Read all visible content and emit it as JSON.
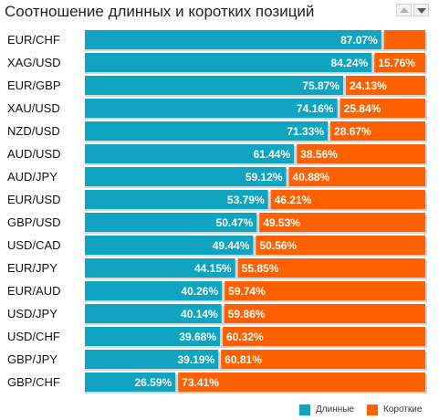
{
  "header": {
    "title": "Соотношение длинных и коротких позиций",
    "sort_up_icon": "triangle-up-icon",
    "sort_down_icon": "triangle-down-icon"
  },
  "legend": {
    "long_label": "Длинные",
    "short_label": "Короткие"
  },
  "colors": {
    "long": "#0fa4bf",
    "short": "#ff6000",
    "track": "#d6d6d6"
  },
  "chart_data": {
    "type": "bar",
    "orientation": "horizontal",
    "stacked": true,
    "title": "Соотношение длинных и коротких позиций",
    "categories": [
      "EUR/CHF",
      "XAG/USD",
      "EUR/GBP",
      "XAU/USD",
      "NZD/USD",
      "AUD/USD",
      "AUD/JPY",
      "EUR/USD",
      "GBP/USD",
      "USD/CAD",
      "EUR/JPY",
      "EUR/AUD",
      "USD/JPY",
      "USD/CHF",
      "GBP/JPY",
      "GBP/CHF"
    ],
    "series": [
      {
        "name": "Длинные",
        "values": [
          87.07,
          84.24,
          75.87,
          74.16,
          71.33,
          61.44,
          59.12,
          53.79,
          50.47,
          49.44,
          44.15,
          40.26,
          40.14,
          39.68,
          39.19,
          26.59
        ]
      },
      {
        "name": "Короткие",
        "values": [
          12.93,
          15.76,
          24.13,
          25.84,
          28.67,
          38.56,
          40.88,
          46.21,
          49.53,
          50.56,
          55.85,
          59.74,
          59.86,
          60.32,
          60.81,
          73.41
        ]
      }
    ],
    "labels": [
      [
        "87.07%",
        ""
      ],
      [
        "84.24%",
        "15.76%"
      ],
      [
        "75.87%",
        "24.13%"
      ],
      [
        "74.16%",
        "25.84%"
      ],
      [
        "71.33%",
        "28.67%"
      ],
      [
        "61.44%",
        "38.56%"
      ],
      [
        "59.12%",
        "40.88%"
      ],
      [
        "53.79%",
        "46.21%"
      ],
      [
        "50.47%",
        "49.53%"
      ],
      [
        "49.44%",
        "50.56%"
      ],
      [
        "44.15%",
        "55.85%"
      ],
      [
        "40.26%",
        "59.74%"
      ],
      [
        "40.14%",
        "59.86%"
      ],
      [
        "39.68%",
        "60.32%"
      ],
      [
        "39.19%",
        "60.81%"
      ],
      [
        "26.59%",
        "73.41%"
      ]
    ],
    "xlim": [
      0,
      100
    ],
    "grid": false,
    "legend_position": "bottom-right"
  }
}
